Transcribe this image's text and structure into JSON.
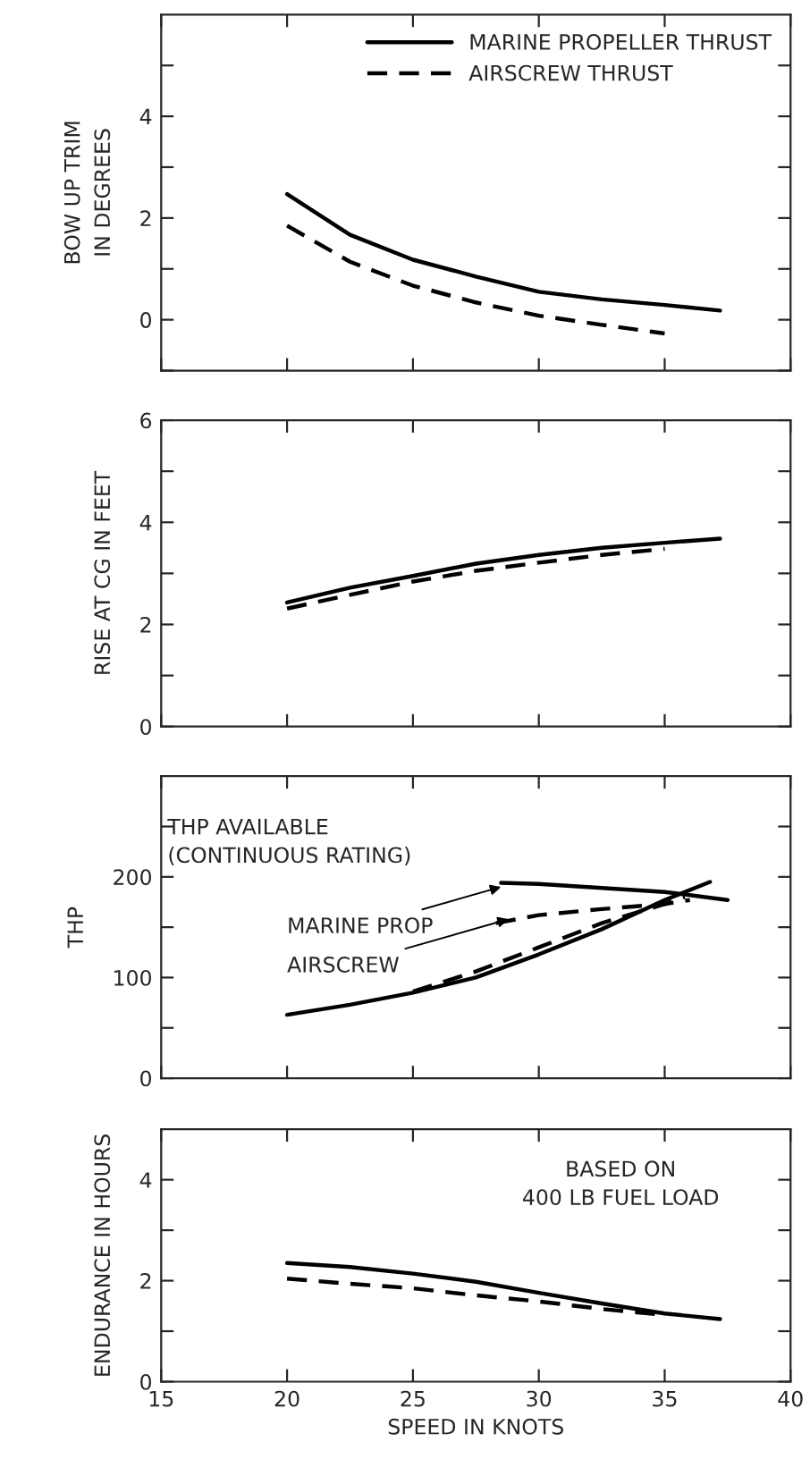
{
  "chart_data": [
    {
      "type": "line",
      "ylabel": "BOW UP TRIM\nIN DEGREES",
      "xlim": [
        15,
        40
      ],
      "xticks": [
        15,
        20,
        25,
        30,
        35,
        40
      ],
      "ylim": [
        -1,
        6
      ],
      "yticks": [
        {
          "value": -1,
          "label": null
        },
        0,
        {
          "value": 1,
          "label": null
        },
        2,
        {
          "value": 3,
          "label": null
        },
        4,
        {
          "value": 5,
          "label": null
        }
      ],
      "tick_labels": "y",
      "legend": "top right",
      "grid": false,
      "series": [
        {
          "name": "MARINE PROPELLER THRUST",
          "color": "#000000",
          "line_style": "solid",
          "x": [
            20,
            22.5,
            25,
            27.5,
            30,
            32.5,
            35,
            37.2
          ],
          "values": [
            2.47,
            1.67,
            1.18,
            0.85,
            0.55,
            0.4,
            0.29,
            0.18
          ]
        },
        {
          "name": "AIRSCREW THRUST",
          "color": "#000000",
          "line_style": "dashed",
          "x": [
            20,
            22.5,
            25,
            27.5,
            30,
            32.5,
            35
          ],
          "values": [
            1.85,
            1.14,
            0.67,
            0.34,
            0.08,
            -0.1,
            -0.27
          ]
        }
      ]
    },
    {
      "type": "line",
      "ylabel": "RISE AT CG IN FEET",
      "xlim": [
        15,
        40
      ],
      "xticks": [
        15,
        20,
        25,
        30,
        35,
        40
      ],
      "ylim": [
        0,
        6
      ],
      "yticks": [
        0,
        {
          "value": 1,
          "label": null
        },
        2,
        {
          "value": 3,
          "label": null
        },
        4,
        {
          "value": 5,
          "label": null
        },
        6
      ],
      "tick_labels": "y",
      "grid": false,
      "series": [
        {
          "color": "#000000",
          "line_style": "solid",
          "x": [
            20,
            22.5,
            25,
            27.5,
            30,
            32.5,
            35,
            37.2
          ],
          "values": [
            2.43,
            2.72,
            2.95,
            3.19,
            3.36,
            3.5,
            3.6,
            3.68
          ]
        },
        {
          "color": "#000000",
          "line_style": "dashed",
          "x": [
            20,
            22.5,
            25,
            27.5,
            30,
            32.5,
            35
          ],
          "values": [
            2.31,
            2.58,
            2.84,
            3.05,
            3.21,
            3.36,
            3.48
          ]
        }
      ]
    },
    {
      "type": "line",
      "ylabel": "THP",
      "xlim": [
        15,
        40
      ],
      "xticks": [
        15,
        20,
        25,
        30,
        35,
        40
      ],
      "ylim": [
        0,
        300
      ],
      "yticks": [
        0,
        {
          "value": 50,
          "label": null
        },
        100,
        {
          "value": 150,
          "label": null
        },
        200,
        {
          "value": 250,
          "label": null
        }
      ],
      "tick_labels": "y",
      "grid": false,
      "annotations": [
        "THP AVAILABLE\n(CONTINUOUS RATING)",
        {
          "text": "MARINE PROP",
          "x": 28.5,
          "y": 190
        },
        {
          "text": "AIRSCREW",
          "x": 28.8,
          "y": 158
        }
      ],
      "series": [
        {
          "color": "#000000",
          "line_style": "solid",
          "x": [
            20,
            22.5,
            25,
            27.5,
            30,
            32.5,
            35,
            36.8
          ],
          "values": [
            63,
            73,
            85,
            100,
            123,
            148,
            177,
            195
          ]
        },
        {
          "color": "#000000",
          "line_style": "dashed",
          "x": [
            25,
            27.5,
            30,
            32.5,
            35,
            35.8
          ],
          "values": [
            86,
            106,
            130,
            154,
            173,
            180
          ]
        },
        {
          "color": "#000000",
          "line_style": "solid",
          "x": [
            28.5,
            30,
            32.5,
            35,
            37.5
          ],
          "values": [
            194,
            193,
            189,
            185,
            177
          ]
        },
        {
          "color": "#000000",
          "line_style": "dashed",
          "x": [
            28.3,
            30,
            32.5,
            35,
            36
          ],
          "values": [
            154,
            162,
            168,
            173,
            177
          ]
        }
      ]
    },
    {
      "type": "line",
      "xlabel": "SPEED IN KNOTS",
      "ylabel": "ENDURANCE IN HOURS",
      "xlim": [
        15,
        40
      ],
      "xticks": [
        15,
        20,
        25,
        30,
        35,
        40
      ],
      "ylim": [
        0,
        5
      ],
      "yticks": [
        0,
        {
          "value": 1,
          "label": null
        },
        2,
        {
          "value": 3,
          "label": null
        },
        4
      ],
      "grid": false,
      "annotations": [
        "BASED ON\n400 LB FUEL LOAD"
      ],
      "series": [
        {
          "color": "#000000",
          "line_style": "solid",
          "x": [
            20,
            22.5,
            25,
            27.5,
            30,
            32.5,
            35,
            37.2
          ],
          "values": [
            2.35,
            2.27,
            2.14,
            1.98,
            1.76,
            1.55,
            1.35,
            1.24
          ]
        },
        {
          "color": "#000000",
          "line_style": "dashed",
          "x": [
            20,
            22.5,
            25,
            27.5,
            30,
            32.5,
            35
          ],
          "values": [
            2.04,
            1.94,
            1.85,
            1.71,
            1.59,
            1.44,
            1.32
          ]
        }
      ]
    }
  ]
}
